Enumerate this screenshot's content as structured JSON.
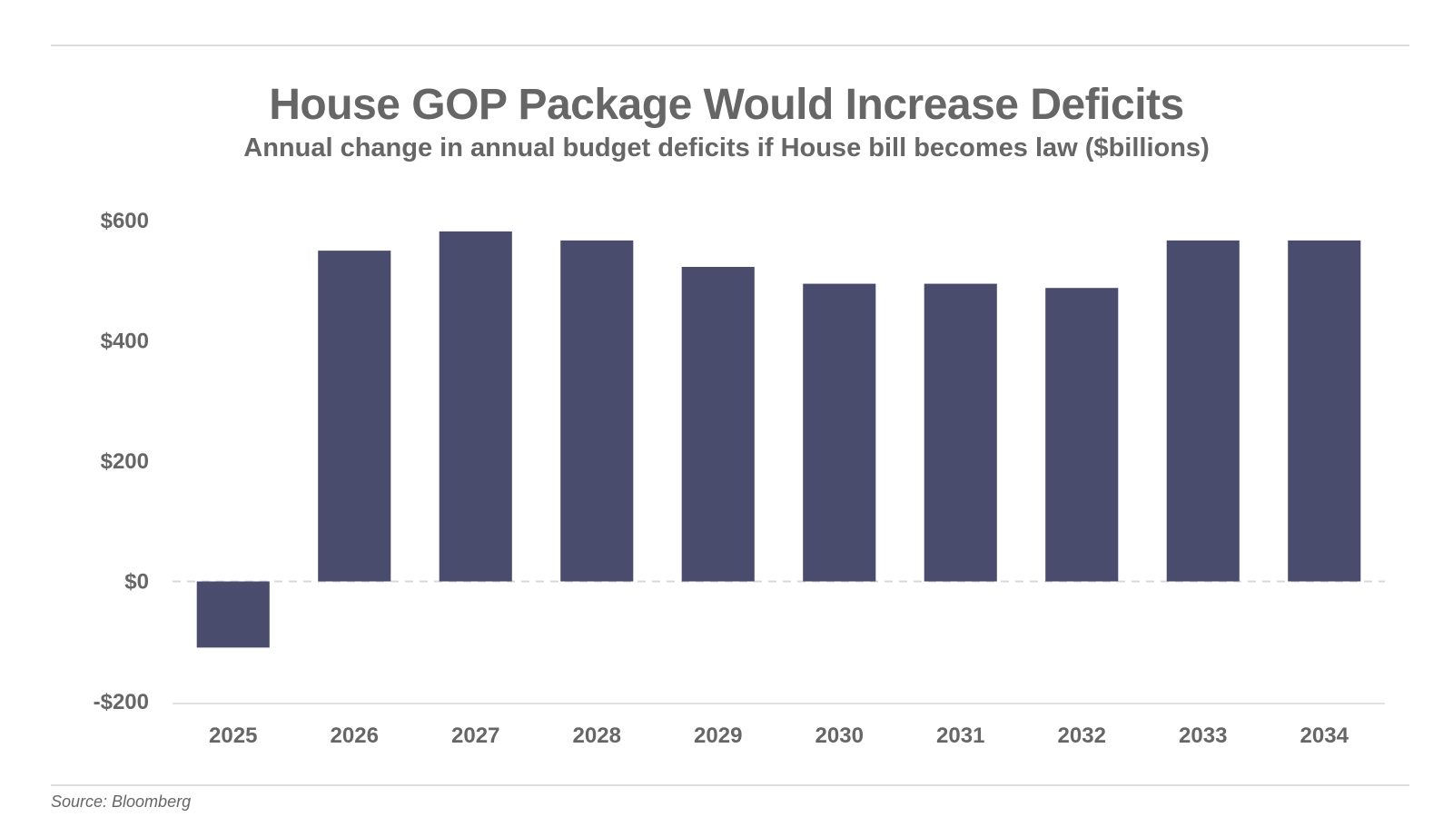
{
  "title": "House GOP Package Would Increase Deficits",
  "subtitle": "Annual change in annual budget deficits if House bill becomes law ($billions)",
  "source": "Source: Bloomberg",
  "colors": {
    "bar": "#4a4c6e",
    "text": "#666666",
    "rule": "#dcdcdc",
    "zero_line": "#d9d9d9",
    "axis_line": "#e2e2e2"
  },
  "chart_data": {
    "type": "bar",
    "title": "House GOP Package Would Increase Deficits",
    "subtitle": "Annual change in annual budget deficits if House bill becomes law ($billions)",
    "xlabel": "",
    "ylabel": "",
    "categories": [
      "2025",
      "2026",
      "2027",
      "2028",
      "2029",
      "2030",
      "2031",
      "2032",
      "2033",
      "2034"
    ],
    "values": [
      -110,
      550,
      582,
      567,
      523,
      495,
      495,
      488,
      567,
      567
    ],
    "ylim": [
      -200,
      600
    ],
    "yticks": [
      600,
      400,
      200,
      0,
      -200
    ],
    "ytick_labels": [
      "$600",
      "$400",
      "$200",
      "$0",
      "-$200"
    ],
    "zero_line_style": "dashed",
    "grid": false,
    "legend": "none"
  }
}
